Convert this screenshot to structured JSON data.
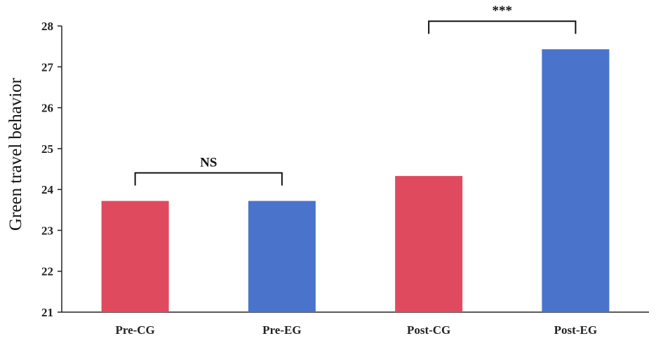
{
  "chart_data": {
    "type": "bar",
    "categories": [
      "Pre-CG",
      "Pre-EG",
      "Post-CG",
      "Post-EG"
    ],
    "values": [
      23.72,
      23.72,
      24.33,
      27.43
    ],
    "bar_colors": [
      "#e04a5f",
      "#4a73cc",
      "#e04a5f",
      "#4a73cc"
    ],
    "ylabel": "Green travel behavior",
    "ylim": [
      21,
      28
    ],
    "yticks": [
      "21",
      "22",
      "23",
      "24",
      "25",
      "26",
      "27",
      "28"
    ],
    "grid": false,
    "annotations": [
      {
        "from": 0,
        "to": 1,
        "label": "NS"
      },
      {
        "from": 2,
        "to": 3,
        "label": "***"
      }
    ]
  }
}
